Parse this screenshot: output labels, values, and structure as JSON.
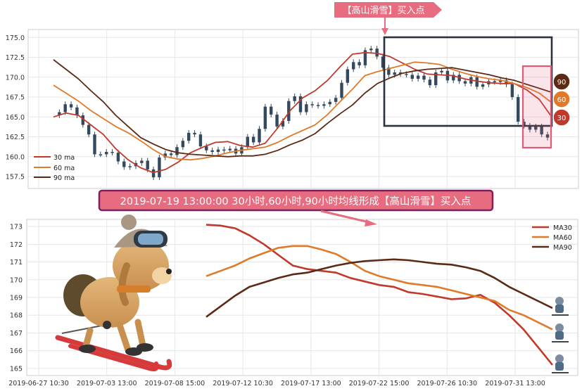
{
  "colors": {
    "ma30": "#c0392b",
    "ma60": "#e07a2a",
    "ma90": "#5b2a14",
    "candle": "#34495e",
    "box_dark": "#2c3140",
    "box_pink": "#e05a73",
    "banner_fill": "#e76c7f",
    "grid": "#e6e6e6"
  },
  "top_banner": {
    "text": "【高山滑雪】买入点"
  },
  "mid_banner": {
    "text": "2019-07-19 13:00:00 30小时,60小时,90小时均线形成【高山滑雪】买入点"
  },
  "badges": [
    "90",
    "60",
    "30"
  ],
  "chart_data": [
    {
      "type": "line",
      "subtype": "candlestick-with-moving-averages",
      "title": "",
      "xlabel": "",
      "ylabel": "",
      "ylim": [
        156,
        176
      ],
      "yticks": [
        "175.0",
        "172.5",
        "170.0",
        "167.5",
        "165.0",
        "162.5",
        "160.0",
        "157.5"
      ],
      "legend": [
        "30 ma",
        "60 ma",
        "90 ma"
      ],
      "legend_position": "bottom-left",
      "grid": true,
      "price": [
        165.2,
        165.6,
        166.6,
        166.2,
        165.2,
        164.0,
        162.8,
        160.3,
        160.3,
        160.6,
        160.5,
        159.4,
        158.7,
        158.8,
        159.2,
        159.5,
        158.4,
        157.4,
        159.9,
        160.4,
        160.2,
        161.2,
        162.0,
        163.0,
        162.8,
        161.3,
        160.8,
        160.6,
        160.9,
        160.8,
        161.0,
        160.4,
        161.2,
        162.5,
        161.8,
        163.5,
        166.3,
        165.3,
        163.8,
        164.5,
        167.0,
        167.6,
        165.6,
        166.6,
        166.5,
        166.4,
        166.6,
        166.9,
        167.4,
        169.3,
        171.0,
        171.9,
        171.5,
        173.4,
        173.6,
        172.6,
        171.2,
        170.3,
        170.6,
        170.4,
        170.3,
        169.8,
        170.2,
        169.7,
        169.0,
        170.6,
        170.8,
        169.6,
        170.3,
        169.5,
        169.2,
        170.0,
        168.8,
        169.1,
        169.5,
        169.4,
        169.6,
        169.1,
        167.5,
        164.4,
        163.9,
        163.4,
        163.8,
        162.8,
        162.4
      ],
      "series": [
        {
          "name": "30 ma",
          "values": [
            165.0,
            165.5,
            165.2,
            164.0,
            162.8,
            161.0,
            159.6,
            158.6,
            158.0,
            158.4,
            159.3,
            160.5,
            161.2,
            161.8,
            161.9,
            161.4,
            161.2,
            161.7,
            163.6,
            165.8,
            167.4,
            168.3,
            169.6,
            171.3,
            172.9,
            173.1,
            173.0,
            172.6,
            171.8,
            171.0,
            170.4,
            170.3,
            170.2,
            169.8,
            169.5,
            169.3,
            169.2,
            169.2,
            168.4,
            167.2,
            165.0
          ]
        },
        {
          "name": "60 ma",
          "values": [
            169.0,
            168.0,
            167.0,
            165.8,
            164.8,
            163.8,
            163.0,
            162.0,
            160.9,
            160.0,
            159.7,
            159.6,
            159.8,
            160.1,
            160.5,
            160.8,
            161.0,
            161.2,
            161.8,
            162.6,
            163.3,
            164.0,
            165.3,
            166.9,
            168.5,
            170.2,
            170.7,
            171.1,
            171.5,
            171.9,
            171.8,
            171.6,
            171.0,
            170.5,
            170.1,
            169.8,
            169.6,
            169.2,
            168.7,
            168.0,
            166.8
          ]
        },
        {
          "name": "90 ma",
          "values": [
            172.2,
            171.0,
            169.8,
            168.3,
            166.9,
            165.2,
            163.8,
            162.4,
            161.6,
            160.9,
            160.5,
            160.3,
            160.2,
            160.1,
            160.0,
            160.1,
            160.1,
            160.3,
            160.8,
            161.5,
            162.1,
            162.9,
            164.2,
            165.4,
            166.5,
            168.0,
            169.2,
            169.9,
            170.5,
            170.8,
            171.0,
            171.1,
            171.2,
            170.9,
            170.6,
            170.3,
            169.9,
            169.6,
            169.1,
            168.6,
            168.1
          ]
        }
      ]
    },
    {
      "type": "line",
      "title": "",
      "xlabel": "",
      "ylabel": "",
      "ylim": [
        164.6,
        173.4
      ],
      "yticks": [
        "173",
        "172",
        "171",
        "170",
        "169",
        "168",
        "167",
        "166",
        "165"
      ],
      "x_tick_labels": [
        "2019-06-27 10:30",
        "2019-07-03 13:00",
        "2019-07-08 15:00",
        "2019-07-12 10:30",
        "2019-07-17 13:00",
        "2019-07-22 15:00",
        "2019-07-26 10:30",
        "2019-07-31 13:00"
      ],
      "legend": [
        "MA30",
        "MA60",
        "MA90"
      ],
      "legend_position": "top-right",
      "grid": true,
      "series": [
        {
          "name": "MA30",
          "values": [
            173.1,
            173.05,
            172.9,
            172.5,
            172.0,
            171.4,
            170.8,
            170.6,
            170.5,
            170.4,
            170.1,
            169.9,
            169.7,
            169.6,
            169.3,
            169.2,
            169.05,
            168.9,
            168.95,
            169.15,
            168.7,
            168.0,
            167.2,
            166.2,
            165.2
          ]
        },
        {
          "name": "MA60",
          "values": [
            170.2,
            170.5,
            170.8,
            171.2,
            171.5,
            171.8,
            171.9,
            171.9,
            171.7,
            171.45,
            171.0,
            170.5,
            170.2,
            170.0,
            169.8,
            169.7,
            169.6,
            169.4,
            169.2,
            169.0,
            168.8,
            168.3,
            168.0,
            167.6,
            167.2
          ]
        },
        {
          "name": "MA90",
          "values": [
            167.9,
            168.5,
            169.1,
            169.6,
            169.85,
            170.1,
            170.3,
            170.4,
            170.6,
            170.8,
            170.95,
            171.05,
            171.1,
            171.15,
            171.1,
            171.0,
            170.9,
            170.85,
            170.7,
            170.5,
            170.1,
            169.6,
            169.2,
            168.8,
            168.4
          ]
        }
      ]
    }
  ]
}
